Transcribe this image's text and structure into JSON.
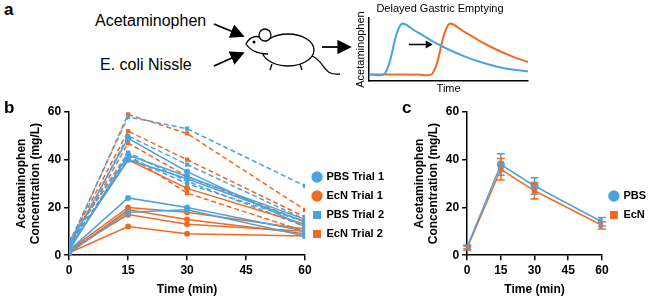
{
  "diagram": {
    "inputs": [
      "Acetaminophen",
      "E. coli Nissle"
    ]
  },
  "chart_data": [
    {
      "panel": "a",
      "type": "line",
      "title": "Delayed Gastric Emptying",
      "x_label": "Time",
      "y_label": "Acetaminophen",
      "x": [
        0,
        1,
        2,
        3,
        4,
        5,
        6,
        7,
        8,
        9,
        10
      ],
      "xlim": [
        0,
        10
      ],
      "ylim": [
        0,
        10
      ],
      "tick_labels": false,
      "grid": false,
      "series": [
        {
          "color": "#4aa3df",
          "values": [
            1,
            1.2,
            9,
            7.8,
            6.3,
            5,
            3.9,
            3,
            2.3,
            1.8,
            1.5
          ]
        },
        {
          "color": "#f06a24",
          "values": [
            1,
            1,
            1,
            1,
            1.2,
            9,
            7.8,
            6.3,
            5,
            3.9,
            3
          ]
        }
      ]
    },
    {
      "panel": "b",
      "type": "line",
      "x_label": "Time (min)",
      "y_label": "Acetaminophen\nConcentration (mg/L)",
      "x": [
        0,
        15,
        30,
        60
      ],
      "xlim": [
        0,
        60
      ],
      "xticks": [
        0,
        15,
        30,
        45,
        60
      ],
      "ylim": [
        0,
        60
      ],
      "yticks": [
        0,
        20,
        40,
        60
      ],
      "grid": false,
      "legend": "right",
      "series": [
        {
          "name": "PBS Trial 1",
          "color": "#4aa3df",
          "marker": "circle",
          "line_style": "solid",
          "values": [
            [
              2,
              24,
              20,
              10
            ],
            [
              1,
              18,
              19,
              8
            ],
            [
              3,
              40,
              32,
              14
            ],
            [
              2,
              42,
              33,
              15
            ],
            [
              4,
              49,
              35,
              12
            ]
          ]
        },
        {
          "name": "EcN Trial 1",
          "color": "#f06a24",
          "marker": "circle",
          "line_style": "solid",
          "values": [
            [
              1,
              12,
              9,
              8
            ],
            [
              2,
              17,
              13,
              10
            ],
            [
              1,
              19,
              15,
              9
            ],
            [
              2,
              20,
              18,
              11
            ],
            [
              3,
              40,
              28,
              13
            ]
          ]
        },
        {
          "name": "PBS Trial 2",
          "color": "#4aa3df",
          "marker": "square",
          "line_style": "dashed",
          "values": [
            [
              5,
              58,
              53,
              29
            ],
            [
              3,
              50,
              38,
              15
            ],
            [
              6,
              43,
              31,
              12
            ],
            [
              4,
              41,
              30,
              14
            ]
          ]
        },
        {
          "name": "EcN Trial 2",
          "color": "#f06a24",
          "marker": "square",
          "line_style": "dashed",
          "values": [
            [
              4,
              59,
              51,
              19
            ],
            [
              5,
              52,
              40,
              16
            ],
            [
              3,
              47,
              33,
              14
            ],
            [
              6,
              42,
              26,
              10
            ]
          ]
        }
      ]
    },
    {
      "panel": "c",
      "type": "line",
      "x_label": "Time (min)",
      "y_label": "Acetaminophen\nConcentration (mg/L)",
      "x": [
        0,
        15,
        30,
        60
      ],
      "xlim": [
        0,
        60
      ],
      "xticks": [
        0,
        15,
        30,
        45,
        60
      ],
      "ylim": [
        0,
        60
      ],
      "yticks": [
        0,
        20,
        40,
        60
      ],
      "grid": false,
      "legend": "right",
      "series": [
        {
          "name": "PBS",
          "color": "#4aa3df",
          "marker": "circle",
          "line_style": "solid",
          "values": [
            3.5,
            38,
            29,
            14
          ],
          "errors": [
            0.8,
            4.5,
            3.5,
            1.8
          ]
        },
        {
          "name": "EcN",
          "color": "#f06a24",
          "marker": "square",
          "line_style": "solid",
          "values": [
            3,
            36,
            27,
            12.5
          ],
          "errors": [
            0.8,
            4.5,
            3.5,
            1.5
          ]
        }
      ]
    }
  ]
}
